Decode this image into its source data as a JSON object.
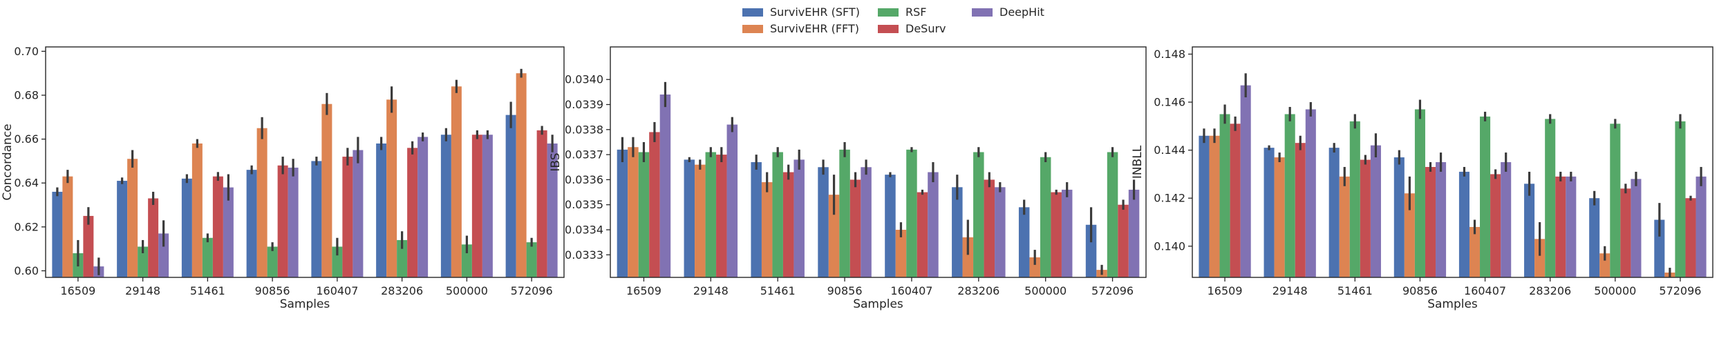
{
  "legend": {
    "items": [
      {
        "label": "SurvivEHR (SFT)",
        "color": "#4c72b0"
      },
      {
        "label": "SurvivEHR (FFT)",
        "color": "#dd8452"
      },
      {
        "label": "RSF",
        "color": "#55a868"
      },
      {
        "label": "DeSurv",
        "color": "#c44e52"
      },
      {
        "label": "DeepHit",
        "color": "#8172b3"
      }
    ]
  },
  "chart_data": [
    {
      "type": "bar",
      "xlabel": "Samples",
      "ylabel": "Concordance",
      "ylim": [
        0.597,
        0.702
      ],
      "yticks": [
        0.6,
        0.62,
        0.64,
        0.66,
        0.68,
        0.7
      ],
      "ytick_labels": [
        "0.60",
        "0.62",
        "0.64",
        "0.66",
        "0.68",
        "0.70"
      ],
      "categories": [
        "16509",
        "29148",
        "51461",
        "90856",
        "160407",
        "283206",
        "500000",
        "572096"
      ],
      "series": [
        {
          "name": "SurvivEHR (SFT)",
          "values": [
            0.636,
            0.641,
            0.642,
            0.646,
            0.65,
            0.658,
            0.662,
            0.671
          ],
          "err": [
            0.002,
            0.0015,
            0.002,
            0.002,
            0.002,
            0.003,
            0.003,
            0.006
          ]
        },
        {
          "name": "SurvivEHR (FFT)",
          "values": [
            0.643,
            0.651,
            0.658,
            0.665,
            0.676,
            0.678,
            0.684,
            0.69
          ],
          "err": [
            0.003,
            0.004,
            0.002,
            0.005,
            0.005,
            0.006,
            0.003,
            0.002
          ]
        },
        {
          "name": "RSF",
          "values": [
            0.608,
            0.611,
            0.615,
            0.611,
            0.611,
            0.614,
            0.612,
            0.613
          ],
          "err": [
            0.006,
            0.003,
            0.002,
            0.002,
            0.004,
            0.004,
            0.004,
            0.002
          ]
        },
        {
          "name": "DeSurv",
          "values": [
            0.625,
            0.633,
            0.643,
            0.648,
            0.652,
            0.656,
            0.662,
            0.664
          ],
          "err": [
            0.004,
            0.003,
            0.002,
            0.004,
            0.004,
            0.003,
            0.002,
            0.002
          ]
        },
        {
          "name": "DeepHit",
          "values": [
            0.602,
            0.617,
            0.638,
            0.647,
            0.655,
            0.661,
            0.662,
            0.658
          ],
          "err": [
            0.004,
            0.006,
            0.006,
            0.004,
            0.006,
            0.002,
            0.002,
            0.004
          ]
        }
      ]
    },
    {
      "type": "bar",
      "xlabel": "Samples",
      "ylabel": "IBS",
      "ylim": [
        0.03321,
        0.03413
      ],
      "yticks": [
        0.0333,
        0.0334,
        0.0335,
        0.0336,
        0.0337,
        0.0338,
        0.0339,
        0.034
      ],
      "ytick_labels": [
        "0.0333",
        "0.0334",
        "0.0335",
        "0.0336",
        "0.0337",
        "0.0338",
        "0.0339",
        "0.0340"
      ],
      "categories": [
        "16509",
        "29148",
        "51461",
        "90856",
        "160407",
        "283206",
        "500000",
        "572096"
      ],
      "series": [
        {
          "name": "SurvivEHR (SFT)",
          "values": [
            0.03372,
            0.03368,
            0.03367,
            0.03365,
            0.03362,
            0.03357,
            0.03349,
            0.03342
          ],
          "err": [
            5e-05,
            1e-05,
            3e-05,
            3e-05,
            1e-05,
            5e-05,
            3e-05,
            7e-05
          ]
        },
        {
          "name": "SurvivEHR (FFT)",
          "values": [
            0.03373,
            0.03366,
            0.03359,
            0.03354,
            0.0334,
            0.03337,
            0.03329,
            0.03324
          ],
          "err": [
            4e-05,
            2e-05,
            4e-05,
            8e-05,
            3e-05,
            7e-05,
            3e-05,
            2e-05
          ]
        },
        {
          "name": "RSF",
          "values": [
            0.03371,
            0.03371,
            0.03371,
            0.03372,
            0.03372,
            0.03371,
            0.03369,
            0.03371
          ],
          "err": [
            4e-05,
            2e-05,
            2e-05,
            3e-05,
            1e-05,
            2e-05,
            2e-05,
            2e-05
          ]
        },
        {
          "name": "DeSurv",
          "values": [
            0.03379,
            0.0337,
            0.03363,
            0.0336,
            0.03355,
            0.0336,
            0.03355,
            0.0335
          ],
          "err": [
            4e-05,
            3e-05,
            3e-05,
            3e-05,
            1e-05,
            3e-05,
            1e-05,
            2e-05
          ]
        },
        {
          "name": "DeepHit",
          "values": [
            0.03394,
            0.03382,
            0.03368,
            0.03365,
            0.03363,
            0.03357,
            0.03356,
            0.03356
          ],
          "err": [
            5e-05,
            3e-05,
            4e-05,
            3e-05,
            4e-05,
            2e-05,
            3e-05,
            4e-05
          ]
        }
      ]
    },
    {
      "type": "bar",
      "xlabel": "Samples",
      "ylabel": "INBLL",
      "ylim": [
        0.1387,
        0.1483
      ],
      "yticks": [
        0.14,
        0.142,
        0.144,
        0.146,
        0.148
      ],
      "ytick_labels": [
        "0.140",
        "0.142",
        "0.144",
        "0.146",
        "0.148"
      ],
      "categories": [
        "16509",
        "29148",
        "51461",
        "90856",
        "160407",
        "283206",
        "500000",
        "572096"
      ],
      "series": [
        {
          "name": "SurvivEHR (SFT)",
          "values": [
            0.1446,
            0.1441,
            0.1441,
            0.1437,
            0.1431,
            0.1426,
            0.142,
            0.1411
          ],
          "err": [
            0.0003,
            0.0001,
            0.0002,
            0.0003,
            0.0002,
            0.0005,
            0.0003,
            0.0007
          ]
        },
        {
          "name": "SurvivEHR (FFT)",
          "values": [
            0.1446,
            0.1437,
            0.1429,
            0.1422,
            0.1408,
            0.1403,
            0.1397,
            0.1389
          ],
          "err": [
            0.0003,
            0.0002,
            0.0004,
            0.0007,
            0.0003,
            0.0007,
            0.0003,
            0.0002
          ]
        },
        {
          "name": "RSF",
          "values": [
            0.1455,
            0.1455,
            0.1452,
            0.1457,
            0.1454,
            0.1453,
            0.1451,
            0.1452
          ],
          "err": [
            0.0004,
            0.0003,
            0.0003,
            0.0004,
            0.0002,
            0.0002,
            0.0002,
            0.0003
          ]
        },
        {
          "name": "DeSurv",
          "values": [
            0.1451,
            0.1443,
            0.1436,
            0.1433,
            0.143,
            0.1429,
            0.1424,
            0.142
          ],
          "err": [
            0.0003,
            0.0003,
            0.0002,
            0.0002,
            0.0002,
            0.0002,
            0.0002,
            0.0001
          ]
        },
        {
          "name": "DeepHit",
          "values": [
            0.1467,
            0.1457,
            0.1442,
            0.1435,
            0.1435,
            0.1429,
            0.1428,
            0.1429
          ],
          "err": [
            0.0005,
            0.0003,
            0.0005,
            0.0004,
            0.0004,
            0.0002,
            0.0003,
            0.0004
          ]
        }
      ]
    }
  ]
}
